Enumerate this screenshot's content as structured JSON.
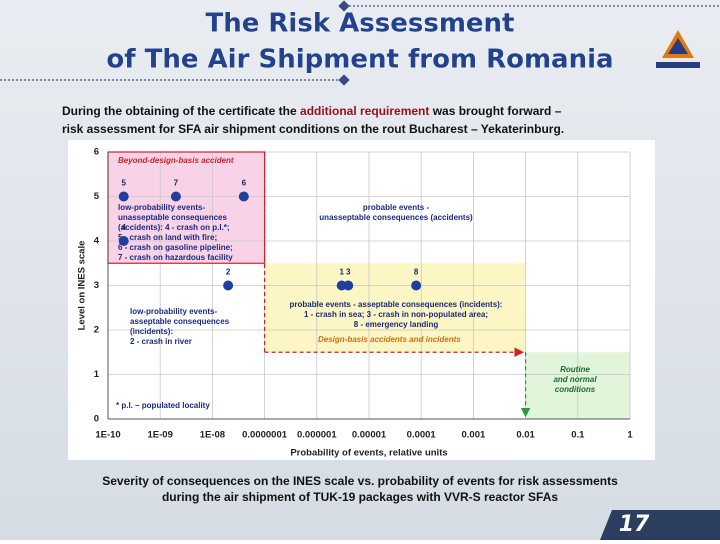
{
  "slide": {
    "title": [
      "The Risk Assessment",
      "of The Air Shipment from Romania"
    ],
    "intro": [
      "During the obtaining of the certificate the ",
      "additional requirement",
      " was brought forward –",
      "risk assessment for SFA air shipment conditions on the rout Bucharest – Yekaterinburg."
    ],
    "caption": [
      "Severity of consequences on the INES scale vs. probability of events for risk assessments",
      "during the air shipment of TUK-19 packages with VVR-S reactor SFAs"
    ],
    "page_number": "17"
  },
  "chart_data": {
    "type": "scatter",
    "xlabel": "Probability of events, relative units",
    "ylabel": "Level on INES scale",
    "xscale": "log",
    "xlim": [
      1e-10,
      1
    ],
    "xticks": [
      {
        "value": 1e-10,
        "label": "1E-10"
      },
      {
        "value": 1e-09,
        "label": "1E-09"
      },
      {
        "value": 1e-08,
        "label": "1E-08"
      },
      {
        "value": 1e-07,
        "label": "0.0000001"
      },
      {
        "value": 1e-06,
        "label": "0.000001"
      },
      {
        "value": 1e-05,
        "label": "0.00001"
      },
      {
        "value": 0.0001,
        "label": "0.0001"
      },
      0.001,
      0.01,
      0.1,
      1
    ],
    "ylim": [
      0,
      6
    ],
    "yticks": [
      0,
      1,
      2,
      3,
      4,
      5,
      6
    ],
    "grid": true,
    "color": "#1f3f9f",
    "labels": [
      "5",
      "7",
      "6",
      "4",
      "2",
      "1",
      "3",
      "8"
    ],
    "x": [
      2e-10,
      2e-09,
      4e-08,
      2e-10,
      2e-08,
      3e-06,
      4e-06,
      8e-05
    ],
    "values": [
      5,
      5,
      5,
      4,
      3,
      3,
      3,
      3
    ],
    "regions": [
      {
        "x": [
          1e-10,
          1e-07
        ],
        "y": [
          3.5,
          6
        ],
        "color": "#f8d3e8"
      },
      {
        "x": [
          1e-07,
          0.01
        ],
        "y": [
          1.5,
          3.5
        ],
        "color": "#fbf6c4"
      },
      {
        "x": [
          0.01,
          1
        ],
        "y": [
          0,
          1.5
        ],
        "color": "#e0f5da"
      }
    ],
    "annotations": [
      {
        "lines": [
          "Beyond-design-basis accident"
        ],
        "color": "#d0202a"
      },
      {
        "lines": [
          "low-probability events-",
          "unasseptable consequences",
          "(accidents): 4 - crash on p.l.*;",
          "5 - crash on land with fire;",
          "6 - crash on gasoline pipeline;",
          "7 - crash on hazardous facility"
        ],
        "color": "#1a2a80"
      },
      {
        "lines": [
          "probable events -",
          "unasseptable consequences (accidents)"
        ],
        "color": "#1a2a80"
      },
      {
        "lines": [
          "probable events - asseptable consequences (incidents):",
          "1 - crash in sea; 3 - crash in non-populated area;",
          "8 - emergency landing"
        ],
        "color": "#1a2a80"
      },
      {
        "lines": [
          "Design-basis accidents and incidents"
        ],
        "color": "#d07010"
      },
      {
        "lines": [
          "low-probability events-",
          "asseptable consequences",
          "(incidents):",
          "2 - crash in river"
        ],
        "color": "#1a2a80"
      },
      {
        "lines": [
          "Routine",
          "and normal",
          "conditions"
        ],
        "color": "#1a6a30"
      },
      {
        "lines": [
          "* p.l. – populated locality"
        ],
        "color": "#1a2a80"
      }
    ]
  }
}
